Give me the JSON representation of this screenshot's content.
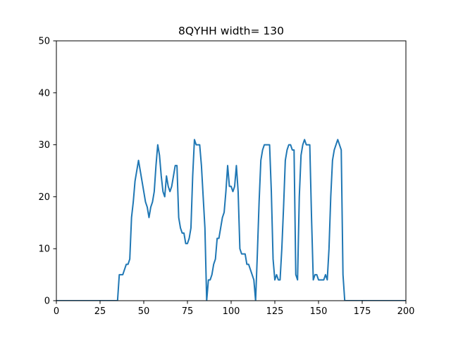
{
  "chart_data": {
    "type": "line",
    "title": "8QYHH width= 130",
    "xlabel": "",
    "ylabel": "",
    "xlim": [
      0,
      200
    ],
    "ylim": [
      0,
      50
    ],
    "xticks": [
      0,
      25,
      50,
      75,
      100,
      125,
      150,
      175,
      200
    ],
    "yticks": [
      0,
      10,
      20,
      30,
      40,
      50
    ],
    "xtick_labels": [
      "0",
      "25",
      "50",
      "75",
      "100",
      "125",
      "150",
      "175",
      "200"
    ],
    "ytick_labels": [
      "0",
      "10",
      "20",
      "30",
      "40",
      "50"
    ],
    "grid": false,
    "line_color": "#1f77b4",
    "series": [
      {
        "x": [
          0,
          35,
          36,
          37,
          38,
          39,
          40,
          41,
          42,
          43,
          44,
          45,
          46,
          47,
          48,
          49,
          50,
          51,
          52,
          53,
          54,
          55,
          56,
          57,
          58,
          59,
          60,
          61,
          62,
          63,
          64,
          65,
          66,
          67,
          68,
          69,
          70,
          71,
          72,
          73,
          74,
          75,
          76,
          77,
          78,
          79,
          80,
          81,
          82,
          83,
          84,
          85,
          86,
          87,
          88,
          89,
          90,
          91,
          92,
          93,
          94,
          95,
          96,
          97,
          98,
          99,
          100,
          101,
          102,
          103,
          104,
          105,
          106,
          107,
          108,
          109,
          110,
          111,
          112,
          113,
          114,
          115,
          116,
          117,
          118,
          119,
          120,
          121,
          122,
          123,
          124,
          125,
          126,
          127,
          128,
          129,
          130,
          131,
          132,
          133,
          134,
          135,
          136,
          137,
          138,
          139,
          140,
          141,
          142,
          143,
          144,
          145,
          146,
          147,
          148,
          149,
          150,
          151,
          152,
          153,
          154,
          155,
          156,
          157,
          158,
          159,
          160,
          161,
          162,
          163,
          164,
          165,
          166,
          200
        ],
        "y": [
          0,
          0,
          5,
          5,
          5,
          6,
          7,
          7,
          8,
          16,
          19,
          23,
          25,
          27,
          25,
          23,
          21,
          19,
          18,
          16,
          18,
          19,
          21,
          26,
          30,
          28,
          24,
          21,
          20,
          24,
          22,
          21,
          22,
          24,
          26,
          26,
          16,
          14,
          13,
          13,
          11,
          11,
          12,
          14,
          24,
          31,
          30,
          30,
          30,
          26,
          20,
          14,
          0,
          4,
          4,
          5,
          7,
          8,
          12,
          12,
          14,
          16,
          17,
          21,
          26,
          22,
          22,
          21,
          22,
          26,
          21,
          10,
          9,
          9,
          9,
          7,
          7,
          6,
          5,
          4,
          0,
          9,
          19,
          27,
          29,
          30,
          30,
          30,
          30,
          21,
          8,
          4,
          5,
          4,
          4,
          10,
          18,
          27,
          29,
          30,
          30,
          29,
          29,
          5,
          4,
          20,
          28,
          30,
          31,
          30,
          30,
          30,
          16,
          4,
          5,
          5,
          4,
          4,
          4,
          4,
          5,
          4,
          10,
          20,
          27,
          29,
          30,
          31,
          30,
          29,
          5,
          0,
          0,
          0
        ]
      }
    ]
  }
}
